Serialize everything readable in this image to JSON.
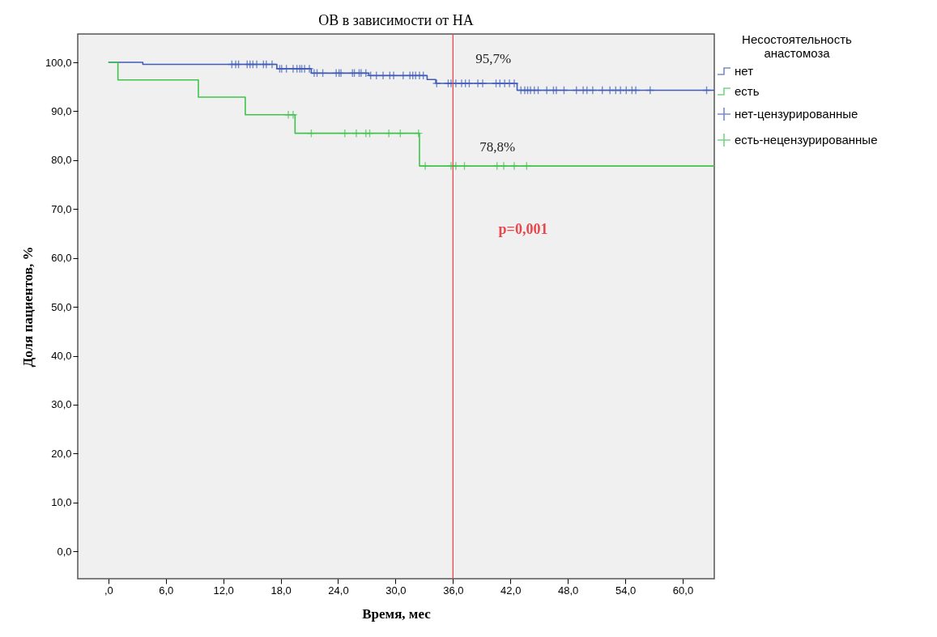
{
  "chart_data": {
    "type": "step",
    "title": "ОВ в зависимости от НА",
    "xlabel": "Время, мес",
    "ylabel": "Доля пациентов, %",
    "legend_title": "Несостоятельность анастомоза",
    "series": [
      {
        "name": "нет",
        "color": "#3f5bb8",
        "x": [
          0,
          3.6,
          17.6,
          21.2,
          27.2,
          33.3,
          34.2,
          42.7,
          63.3
        ],
        "values": [
          100,
          99.6,
          98.7,
          97.8,
          97.3,
          96.5,
          95.7,
          94.3,
          94.3
        ]
      },
      {
        "name": "есть",
        "color": "#3ec44a",
        "x": [
          0,
          1.0,
          9.4,
          14.3,
          19.5,
          32.5,
          63.3
        ],
        "values": [
          100,
          96.4,
          92.9,
          89.3,
          85.5,
          78.8,
          78.8
        ]
      },
      {
        "name": "нет-цензурированные",
        "type": "scatter",
        "marker": "cross",
        "color": "#3f5bb8",
        "x": [
          12.9,
          13.3,
          13.6,
          14.5,
          14.8,
          15.1,
          15.5,
          16.2,
          16.5,
          17.1,
          17.9,
          18.1,
          18.6,
          19.3,
          19.7,
          20.0,
          20.2,
          20.5,
          21.0,
          21.5,
          21.8,
          22.4,
          23.8,
          24.1,
          24.3,
          25.5,
          25.7,
          26.2,
          26.4,
          26.9,
          27.4,
          28.0,
          28.7,
          29.4,
          29.8,
          30.8,
          31.5,
          31.8,
          32.1,
          32.5,
          32.9,
          34.3,
          35.5,
          35.8,
          36.3,
          36.9,
          37.3,
          37.7,
          38.6,
          39.1,
          40.5,
          40.9,
          41.4,
          41.9,
          42.4,
          43.1,
          43.5,
          43.8,
          44.1,
          44.5,
          44.9,
          45.8,
          46.5,
          46.8,
          47.6,
          48.9,
          49.6,
          50.0,
          50.6,
          51.6,
          52.4,
          53.0,
          53.5,
          54.1,
          54.7,
          55.1,
          56.6,
          62.5
        ],
        "values": [
          99.6,
          99.6,
          99.6,
          99.6,
          99.6,
          99.6,
          99.6,
          99.6,
          99.6,
          99.6,
          98.7,
          98.7,
          98.7,
          98.7,
          98.7,
          98.7,
          98.7,
          98.7,
          98.7,
          97.8,
          97.8,
          97.8,
          97.8,
          97.8,
          97.8,
          97.8,
          97.8,
          97.8,
          97.8,
          97.8,
          97.3,
          97.3,
          97.3,
          97.3,
          97.3,
          97.3,
          97.3,
          97.3,
          97.3,
          97.3,
          97.3,
          95.7,
          95.7,
          95.7,
          95.7,
          95.7,
          95.7,
          95.7,
          95.7,
          95.7,
          95.7,
          95.7,
          95.7,
          95.7,
          95.7,
          94.3,
          94.3,
          94.3,
          94.3,
          94.3,
          94.3,
          94.3,
          94.3,
          94.3,
          94.3,
          94.3,
          94.3,
          94.3,
          94.3,
          94.3,
          94.3,
          94.3,
          94.3,
          94.3,
          94.3,
          94.3,
          94.3,
          94.3
        ]
      },
      {
        "name": "есть-нецензурированные",
        "type": "scatter",
        "marker": "cross",
        "color": "#3ec44a",
        "x": [
          18.8,
          19.3,
          21.2,
          24.7,
          25.9,
          26.9,
          27.3,
          29.3,
          30.5,
          32.4,
          33.1,
          35.8,
          36.3,
          37.2,
          40.6,
          41.3,
          42.4,
          43.7
        ],
        "values": [
          89.3,
          89.3,
          85.5,
          85.5,
          85.5,
          85.5,
          85.5,
          85.5,
          85.5,
          85.5,
          78.8,
          78.8,
          78.8,
          78.8,
          78.8,
          78.8,
          78.8,
          78.8
        ]
      }
    ],
    "xlim": [
      -3.2,
      63.3
    ],
    "xticks": [
      {
        "value": 0,
        "label": ",0"
      },
      {
        "value": 6,
        "label": "6,0"
      },
      {
        "value": 12,
        "label": "12,0"
      },
      {
        "value": 18,
        "label": "18,0"
      },
      {
        "value": 24,
        "label": "24,0"
      },
      {
        "value": 30,
        "label": "30,0"
      },
      {
        "value": 36,
        "label": "36,0"
      },
      {
        "value": 42,
        "label": "42,0"
      },
      {
        "value": 48,
        "label": "48,0"
      },
      {
        "value": 54,
        "label": "54,0"
      },
      {
        "value": 60,
        "label": "60,0"
      }
    ],
    "ylim": [
      -5.6,
      105.8
    ],
    "yticks": [
      {
        "value": 0,
        "label": "0,0"
      },
      {
        "value": 10,
        "label": "10,0"
      },
      {
        "value": 20,
        "label": "20,0"
      },
      {
        "value": 30,
        "label": "30,0"
      },
      {
        "value": 40,
        "label": "40,0"
      },
      {
        "value": 50,
        "label": "50,0"
      },
      {
        "value": 60,
        "label": "60,0"
      },
      {
        "value": 70,
        "label": "70,0"
      },
      {
        "value": 80,
        "label": "80,0"
      },
      {
        "value": 90,
        "label": "90,0"
      },
      {
        "value": 100,
        "label": "100,0"
      }
    ],
    "ref_lines": [
      {
        "axis": "x",
        "value": 36,
        "color": "#e8474c"
      }
    ],
    "annotations": [
      {
        "text": "95,7%",
        "x": 36,
        "y": 95.7
      },
      {
        "text": "78,8%",
        "x": 36,
        "y": 78.8
      },
      "p=0,001"
    ],
    "grid": false,
    "legend": "top right"
  }
}
